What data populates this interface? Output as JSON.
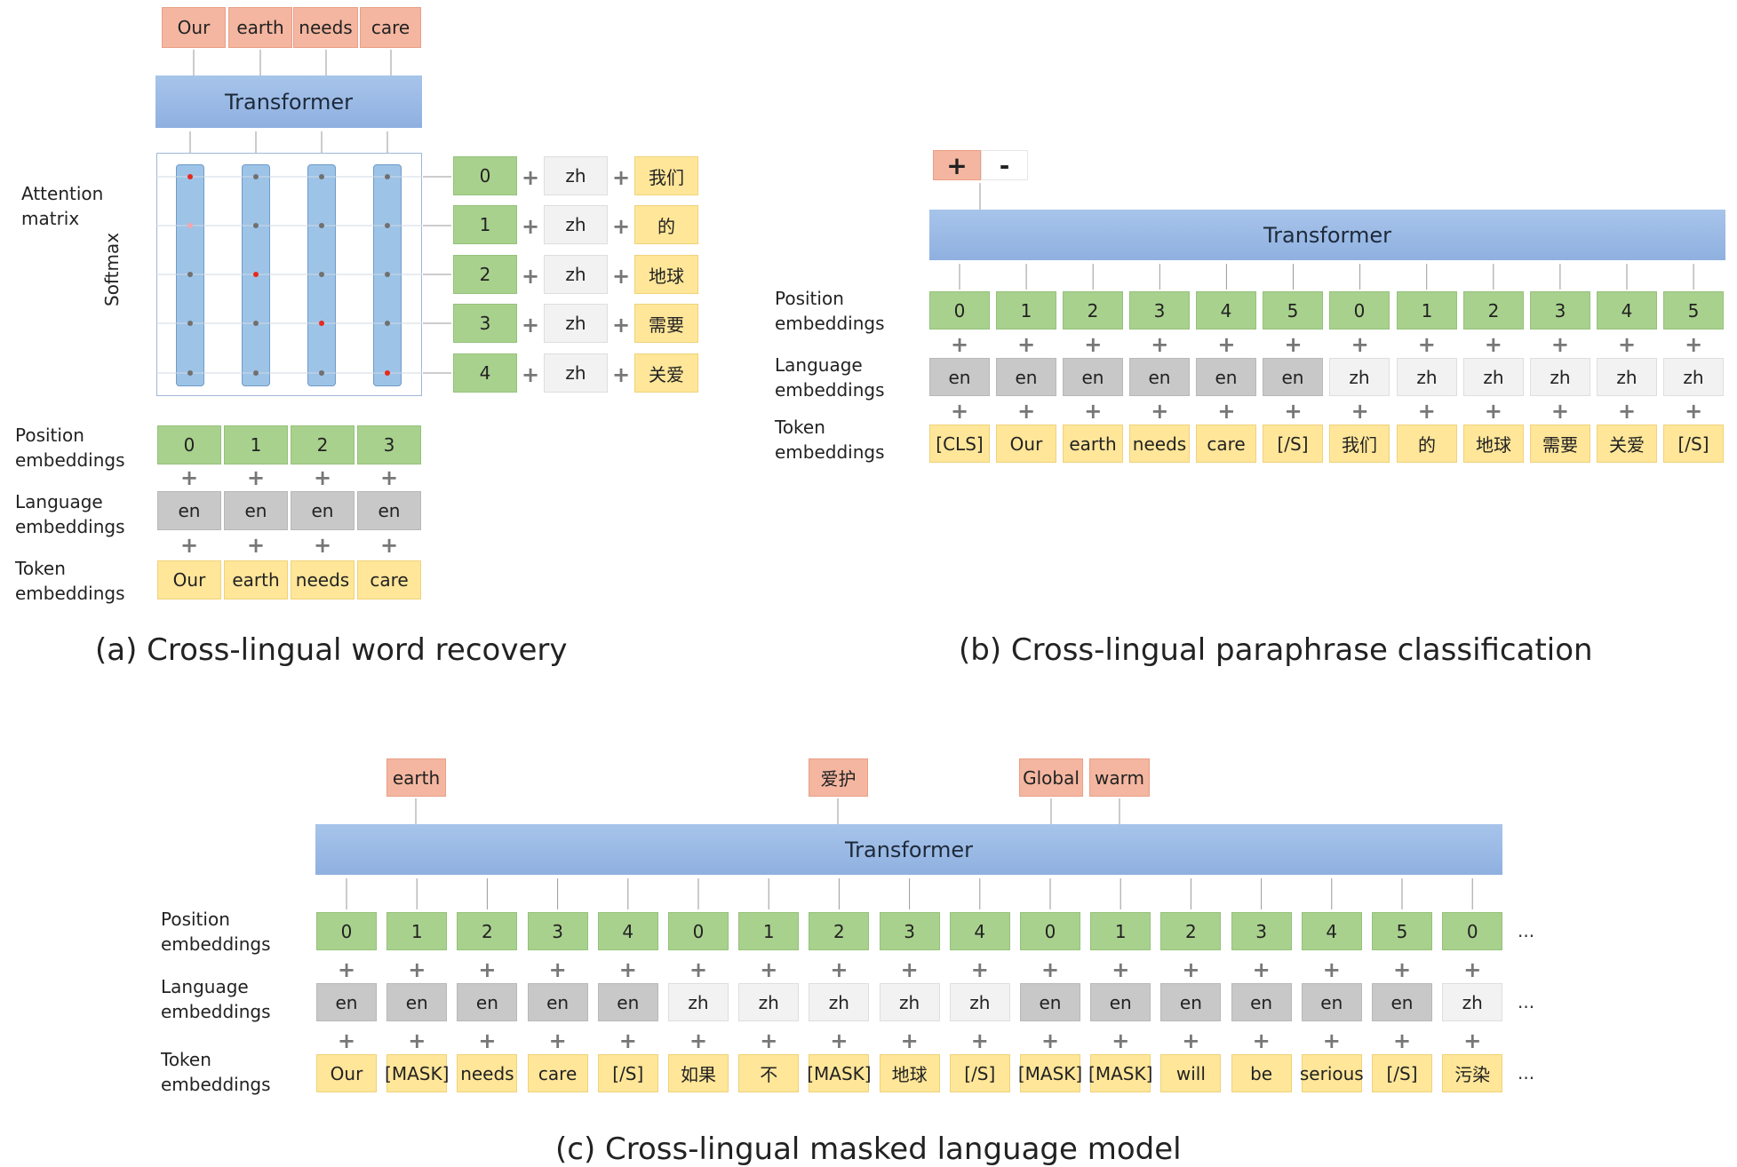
{
  "panel_a": {
    "caption": "(a) Cross-lingual word recovery",
    "outputs": [
      "Our",
      "earth",
      "needs",
      "care"
    ],
    "transformer": "Transformer",
    "attention_label": "Attention matrix",
    "softmax_label": "Softmax",
    "side_positions": [
      "0",
      "1",
      "2",
      "3",
      "4"
    ],
    "side_languages": [
      "zh",
      "zh",
      "zh",
      "zh",
      "zh"
    ],
    "side_tokens": [
      "我们",
      "的",
      "地球",
      "需要",
      "关爱"
    ],
    "row_labels": {
      "position": "Position embeddings",
      "language": "Language embeddings",
      "token": "Token embeddings"
    },
    "positions": [
      "0",
      "1",
      "2",
      "3"
    ],
    "languages": [
      "en",
      "en",
      "en",
      "en"
    ],
    "tokens": [
      "Our",
      "earth",
      "needs",
      "care"
    ]
  },
  "panel_b": {
    "caption": "(b) Cross-lingual paraphrase classification",
    "classes": [
      "+",
      "-"
    ],
    "transformer": "Transformer",
    "row_labels": {
      "position": "Position embeddings",
      "language": "Language embeddings",
      "token": "Token embeddings"
    },
    "positions": [
      "0",
      "1",
      "2",
      "3",
      "4",
      "5",
      "0",
      "1",
      "2",
      "3",
      "4",
      "5"
    ],
    "languages": [
      "en",
      "en",
      "en",
      "en",
      "en",
      "en",
      "zh",
      "zh",
      "zh",
      "zh",
      "zh",
      "zh"
    ],
    "tokens": [
      "[CLS]",
      "Our",
      "earth",
      "needs",
      "care",
      "[/S]",
      "我们",
      "的",
      "地球",
      "需要",
      "关爱",
      "[/S]"
    ]
  },
  "panel_c": {
    "caption": "(c) Cross-lingual masked language model",
    "outputs": [
      "earth",
      "爱护",
      "Global",
      "warm"
    ],
    "transformer": "Transformer",
    "row_labels": {
      "position": "Position embeddings",
      "language": "Language embeddings",
      "token": "Token embeddings"
    },
    "positions": [
      "0",
      "1",
      "2",
      "3",
      "4",
      "0",
      "1",
      "2",
      "3",
      "4",
      "0",
      "1",
      "2",
      "3",
      "4",
      "5",
      "0"
    ],
    "languages": [
      "en",
      "en",
      "en",
      "en",
      "en",
      "zh",
      "zh",
      "zh",
      "zh",
      "zh",
      "en",
      "en",
      "en",
      "en",
      "en",
      "en",
      "zh"
    ],
    "tokens": [
      "Our",
      "[MASK]",
      "needs",
      "care",
      "[/S]",
      "如果",
      "不",
      "[MASK]",
      "地球",
      "[/S]",
      "[MASK]",
      "[MASK]",
      "will",
      "be",
      "serious",
      "[/S]",
      "污染"
    ],
    "ellipsis": "..."
  },
  "colors": {
    "position": "#a9d18e",
    "language_en": "#c8c8c8",
    "language_zh": "#f2f2f2",
    "token": "#ffe699",
    "output": "#f4b6a0",
    "transformer": "#9dbbe6",
    "attention_dot_high": "#e8291c",
    "attention_dot_mid": "#f4a6b0",
    "attention_dot_low": "#707070"
  }
}
